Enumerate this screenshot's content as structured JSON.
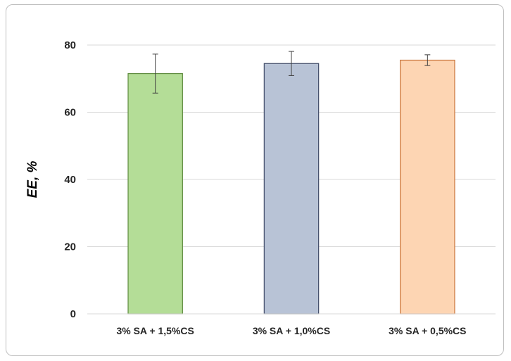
{
  "chart_data": {
    "type": "bar",
    "title": "",
    "xlabel": "",
    "ylabel": "EE, %",
    "ylim": [
      0,
      80
    ],
    "yticks": [
      0,
      20,
      40,
      60,
      80
    ],
    "grid": true,
    "categories": [
      "3% SA + 1,5%CS",
      "3% SA + 1,0%CS",
      "3% SA + 0,5%CS"
    ],
    "values": [
      71.5,
      74.5,
      75.5
    ],
    "errors": [
      [
        5.8,
        5.8
      ],
      [
        3.6,
        3.6
      ],
      [
        1.6,
        1.6
      ]
    ],
    "bar_fills": [
      "#b4dd97",
      "#b8c3d6",
      "#fdd5b3"
    ],
    "bar_strokes": [
      "#5e8a3e",
      "#3f4a66",
      "#c9743b"
    ]
  }
}
